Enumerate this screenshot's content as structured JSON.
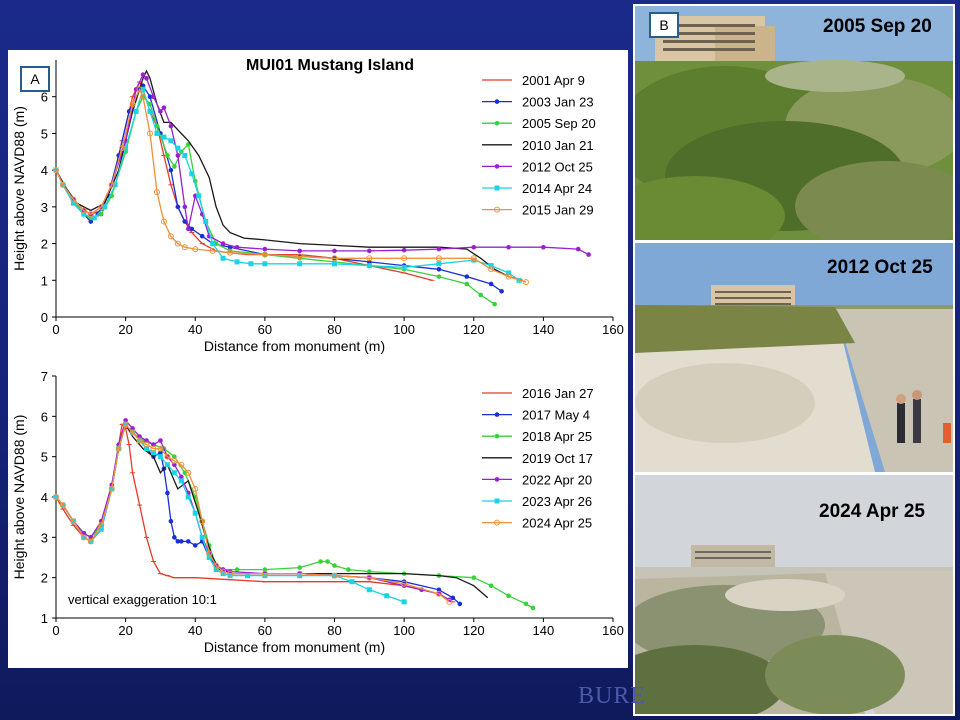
{
  "panel_a_label": "A",
  "panel_b_label": "B",
  "footer_logo": "BURE",
  "photos": [
    {
      "date": "2005 Sep 20"
    },
    {
      "date": "2012 Oct 25"
    },
    {
      "date": "2024 Apr 25"
    }
  ],
  "chart_data": [
    {
      "type": "line",
      "title": "MUI01 Mustang Island",
      "xlabel": "Distance from monument (m)",
      "ylabel": "Height above NAVD88 (m)",
      "xlim": [
        0,
        160
      ],
      "ylim": [
        0,
        7
      ],
      "xticks": [
        "0",
        "20",
        "40",
        "60",
        "80",
        "100",
        "120",
        "140",
        "160"
      ],
      "yticks": [
        "0",
        "1",
        "2",
        "3",
        "4",
        "5",
        "6"
      ],
      "legend_position": "top-right",
      "series": [
        {
          "name": "2001 Apr 9",
          "color": "#e53b2a",
          "marker": "dash",
          "x": [
            0,
            2,
            5,
            8,
            10,
            13,
            16,
            19,
            22,
            24,
            25,
            27,
            29,
            31,
            33,
            35,
            37,
            39,
            42,
            46,
            50,
            55,
            60,
            70,
            80,
            90,
            100,
            108
          ],
          "y": [
            4.0,
            3.6,
            3.2,
            2.9,
            2.8,
            2.9,
            3.6,
            4.8,
            6.0,
            6.4,
            6.2,
            5.6,
            5.2,
            4.4,
            3.6,
            3.0,
            2.6,
            2.3,
            2.0,
            1.8,
            1.75,
            1.7,
            1.7,
            1.7,
            1.6,
            1.4,
            1.2,
            1.0
          ]
        },
        {
          "name": "2003 Jan 23",
          "color": "#1a2fd4",
          "marker": "dot",
          "x": [
            0,
            2,
            5,
            8,
            10,
            12,
            15,
            18,
            21,
            24,
            25,
            27,
            30,
            33,
            35,
            37,
            39,
            42,
            45,
            50,
            60,
            70,
            80,
            90,
            100,
            110,
            118,
            125,
            128
          ],
          "y": [
            4.0,
            3.6,
            3.1,
            2.8,
            2.6,
            2.8,
            3.3,
            4.4,
            5.6,
            6.2,
            6.3,
            6.0,
            5.0,
            4.0,
            3.0,
            2.6,
            2.4,
            2.2,
            2.0,
            1.9,
            1.7,
            1.65,
            1.6,
            1.5,
            1.4,
            1.3,
            1.1,
            0.9,
            0.7
          ]
        },
        {
          "name": "2005 Sep 20",
          "color": "#39d13a",
          "marker": "dot",
          "x": [
            0,
            2,
            5,
            8,
            10,
            13,
            16,
            20,
            23,
            25,
            27,
            29,
            32,
            34,
            36,
            38,
            40,
            43,
            46,
            50,
            60,
            70,
            80,
            90,
            100,
            110,
            118,
            122,
            126
          ],
          "y": [
            4.0,
            3.6,
            3.2,
            2.8,
            2.7,
            2.8,
            3.3,
            4.5,
            5.6,
            6.0,
            5.8,
            5.2,
            4.4,
            4.1,
            4.5,
            4.7,
            3.7,
            2.6,
            2.0,
            1.8,
            1.7,
            1.6,
            1.5,
            1.4,
            1.3,
            1.1,
            0.9,
            0.6,
            0.35
          ]
        },
        {
          "name": "2010 Jan 21",
          "color": "#1a1a1a",
          "marker": "none",
          "x": [
            0,
            3,
            6,
            10,
            14,
            18,
            22,
            25,
            26,
            27,
            29,
            31,
            33,
            35,
            38,
            41,
            44,
            46,
            48,
            50,
            54,
            60,
            70,
            80,
            90,
            100,
            110,
            118,
            122,
            126,
            130,
            134
          ],
          "y": [
            4.0,
            3.5,
            3.1,
            2.9,
            3.1,
            4.0,
            5.6,
            6.5,
            6.7,
            6.5,
            5.8,
            5.3,
            5.3,
            5.1,
            4.8,
            4.4,
            3.8,
            3.0,
            2.5,
            2.3,
            2.15,
            2.1,
            2.0,
            1.95,
            1.9,
            1.9,
            1.9,
            1.85,
            1.6,
            1.3,
            1.1,
            1.0
          ]
        },
        {
          "name": "2012 Oct 25",
          "color": "#9b1fd2",
          "marker": "dot",
          "x": [
            0,
            2,
            5,
            8,
            10,
            13,
            16,
            20,
            23,
            25,
            26,
            28,
            30,
            31,
            33,
            35,
            37,
            38,
            40,
            42,
            44,
            48,
            52,
            60,
            70,
            80,
            90,
            100,
            110,
            120,
            130,
            140,
            150,
            153
          ],
          "y": [
            4.0,
            3.6,
            3.2,
            2.9,
            2.8,
            3.0,
            3.6,
            4.8,
            6.2,
            6.6,
            6.5,
            6.0,
            5.6,
            5.7,
            5.2,
            4.4,
            3.0,
            2.4,
            3.3,
            2.8,
            2.2,
            2.0,
            1.9,
            1.85,
            1.8,
            1.8,
            1.8,
            1.82,
            1.85,
            1.9,
            1.9,
            1.9,
            1.85,
            1.7
          ]
        },
        {
          "name": "2014 Apr 24",
          "color": "#19d4e6",
          "marker": "square",
          "x": [
            0,
            2,
            5,
            8,
            11,
            14,
            17,
            20,
            23,
            25,
            27,
            29,
            31,
            33,
            35,
            37,
            39,
            41,
            43,
            45,
            48,
            52,
            56,
            60,
            70,
            80,
            90,
            100,
            110,
            120,
            125,
            130,
            133
          ],
          "y": [
            4.0,
            3.6,
            3.1,
            2.8,
            2.7,
            3.0,
            3.6,
            4.6,
            5.6,
            6.2,
            5.6,
            5.0,
            4.9,
            4.8,
            4.6,
            4.4,
            3.9,
            3.3,
            2.6,
            2.0,
            1.6,
            1.5,
            1.45,
            1.45,
            1.45,
            1.45,
            1.4,
            1.35,
            1.45,
            1.55,
            1.4,
            1.2,
            1.0
          ]
        },
        {
          "name": "2015 Jan 29",
          "color": "#f2913a",
          "marker": "circle",
          "x": [
            0,
            2,
            5,
            8,
            10,
            13,
            16,
            19,
            22,
            24,
            25,
            27,
            29,
            31,
            33,
            35,
            37,
            40,
            45,
            50,
            60,
            70,
            80,
            90,
            100,
            110,
            120,
            125,
            130,
            135
          ],
          "y": [
            4.0,
            3.6,
            3.2,
            2.9,
            2.8,
            3.0,
            3.6,
            4.6,
            5.8,
            6.2,
            6.0,
            5.0,
            3.4,
            2.6,
            2.2,
            2.0,
            1.9,
            1.85,
            1.8,
            1.75,
            1.7,
            1.65,
            1.6,
            1.6,
            1.6,
            1.6,
            1.6,
            1.3,
            1.1,
            0.95
          ]
        }
      ]
    },
    {
      "type": "line",
      "title": "",
      "xlabel": "Distance from monument (m)",
      "ylabel": "Height above NAVD88 (m)",
      "xlim": [
        0,
        160
      ],
      "ylim": [
        1,
        7
      ],
      "xticks": [
        "0",
        "20",
        "40",
        "60",
        "80",
        "100",
        "120",
        "140",
        "160"
      ],
      "yticks": [
        "1",
        "2",
        "3",
        "4",
        "5",
        "6",
        "7"
      ],
      "legend_position": "top-right",
      "annotation": "vertical exaggeration 10:1",
      "series": [
        {
          "name": "2016 Jan 27",
          "color": "#e53b2a",
          "marker": "dash",
          "x": [
            0,
            2,
            5,
            8,
            10,
            13,
            16,
            18,
            19,
            20,
            21,
            22,
            24,
            26,
            28,
            30,
            32,
            34,
            36,
            40,
            50,
            60,
            70,
            80,
            90,
            100,
            110,
            114
          ],
          "y": [
            4.0,
            3.7,
            3.3,
            3.0,
            2.9,
            3.2,
            4.2,
            5.3,
            5.8,
            5.7,
            5.3,
            4.6,
            3.8,
            3.0,
            2.4,
            2.1,
            2.05,
            2.0,
            2.0,
            2.0,
            1.95,
            1.9,
            1.9,
            1.9,
            1.9,
            1.8,
            1.6,
            1.4
          ]
        },
        {
          "name": "2017 May 4",
          "color": "#1a2fd4",
          "marker": "dot",
          "x": [
            0,
            2,
            5,
            8,
            10,
            13,
            16,
            18,
            20,
            22,
            24,
            26,
            28,
            30,
            31,
            32,
            33,
            34,
            35,
            36,
            38,
            40,
            42,
            44,
            46,
            50,
            60,
            70,
            80,
            90,
            100,
            110,
            114,
            116
          ],
          "y": [
            4.0,
            3.8,
            3.4,
            3.1,
            3.0,
            3.3,
            4.2,
            5.2,
            5.8,
            5.6,
            5.4,
            5.2,
            5.0,
            5.1,
            4.7,
            4.1,
            3.4,
            3.0,
            2.9,
            2.9,
            2.9,
            2.8,
            2.9,
            2.5,
            2.3,
            2.1,
            2.1,
            2.1,
            2.05,
            2.0,
            1.9,
            1.7,
            1.5,
            1.35
          ]
        },
        {
          "name": "2018 Apr 25",
          "color": "#39d13a",
          "marker": "dot",
          "x": [
            0,
            2,
            5,
            8,
            10,
            13,
            16,
            18,
            20,
            22,
            25,
            28,
            31,
            34,
            37,
            40,
            42,
            44,
            46,
            48,
            52,
            60,
            70,
            76,
            78,
            80,
            84,
            90,
            100,
            110,
            120,
            125,
            130,
            135,
            137
          ],
          "y": [
            4.0,
            3.8,
            3.4,
            3.1,
            3.0,
            3.3,
            4.2,
            5.2,
            5.8,
            5.6,
            5.4,
            5.3,
            5.2,
            5.0,
            4.6,
            4.0,
            3.4,
            2.8,
            2.3,
            2.2,
            2.2,
            2.2,
            2.25,
            2.4,
            2.4,
            2.3,
            2.2,
            2.15,
            2.1,
            2.05,
            2.0,
            1.8,
            1.55,
            1.35,
            1.25
          ]
        },
        {
          "name": "2019 Oct 17",
          "color": "#1a1a1a",
          "marker": "none",
          "x": [
            0,
            2,
            5,
            8,
            10,
            13,
            16,
            18,
            20,
            22,
            25,
            28,
            30,
            32,
            35,
            38,
            41,
            43,
            45,
            47,
            50,
            60,
            70,
            80,
            90,
            100,
            110,
            115,
            120,
            124
          ],
          "y": [
            4.0,
            3.8,
            3.4,
            3.0,
            2.9,
            3.2,
            4.2,
            5.2,
            5.8,
            5.5,
            5.2,
            5.0,
            4.6,
            4.8,
            4.2,
            4.4,
            3.6,
            3.0,
            2.5,
            2.2,
            2.1,
            2.1,
            2.1,
            2.1,
            2.1,
            2.1,
            2.05,
            2.0,
            1.8,
            1.5
          ]
        },
        {
          "name": "2022 Apr 20",
          "color": "#9b1fd2",
          "marker": "dot",
          "x": [
            0,
            2,
            5,
            8,
            10,
            13,
            16,
            18,
            20,
            22,
            24,
            26,
            28,
            30,
            32,
            34,
            36,
            38,
            40,
            42,
            44,
            46,
            48,
            50,
            60,
            70,
            80,
            90,
            100,
            105,
            110,
            113
          ],
          "y": [
            4.0,
            3.8,
            3.4,
            3.1,
            3.0,
            3.4,
            4.3,
            5.3,
            5.9,
            5.7,
            5.5,
            5.4,
            5.3,
            5.4,
            5.0,
            4.8,
            4.5,
            4.1,
            3.6,
            3.0,
            2.6,
            2.3,
            2.2,
            2.15,
            2.1,
            2.1,
            2.05,
            2.0,
            1.8,
            1.7,
            1.6,
            1.45
          ]
        },
        {
          "name": "2023 Apr 26",
          "color": "#19d4e6",
          "marker": "square",
          "x": [
            0,
            2,
            5,
            8,
            10,
            13,
            16,
            18,
            20,
            22,
            24,
            26,
            28,
            30,
            32,
            34,
            36,
            38,
            40,
            42,
            44,
            46,
            48,
            50,
            55,
            60,
            70,
            80,
            85,
            90,
            95,
            100
          ],
          "y": [
            4.0,
            3.8,
            3.4,
            3.0,
            2.9,
            3.2,
            4.2,
            5.2,
            5.8,
            5.6,
            5.4,
            5.2,
            5.1,
            5.0,
            4.8,
            4.6,
            4.4,
            4.0,
            3.6,
            3.0,
            2.5,
            2.2,
            2.1,
            2.05,
            2.05,
            2.05,
            2.05,
            2.05,
            1.9,
            1.7,
            1.55,
            1.4
          ]
        },
        {
          "name": "2024 Apr 25",
          "color": "#f2913a",
          "marker": "circle",
          "x": [
            0,
            2,
            5,
            8,
            10,
            13,
            16,
            18,
            20,
            22,
            24,
            26,
            28,
            30,
            32,
            34,
            36,
            38,
            40,
            42,
            44,
            46,
            48,
            50,
            60,
            70,
            80,
            90,
            100,
            110,
            113
          ],
          "y": [
            4.0,
            3.8,
            3.4,
            3.0,
            2.9,
            3.3,
            4.2,
            5.2,
            5.8,
            5.6,
            5.4,
            5.3,
            5.2,
            5.2,
            5.0,
            4.9,
            4.8,
            4.6,
            4.2,
            3.4,
            2.6,
            2.3,
            2.15,
            2.1,
            2.1,
            2.1,
            2.05,
            2.0,
            1.85,
            1.6,
            1.4
          ]
        }
      ]
    }
  ]
}
